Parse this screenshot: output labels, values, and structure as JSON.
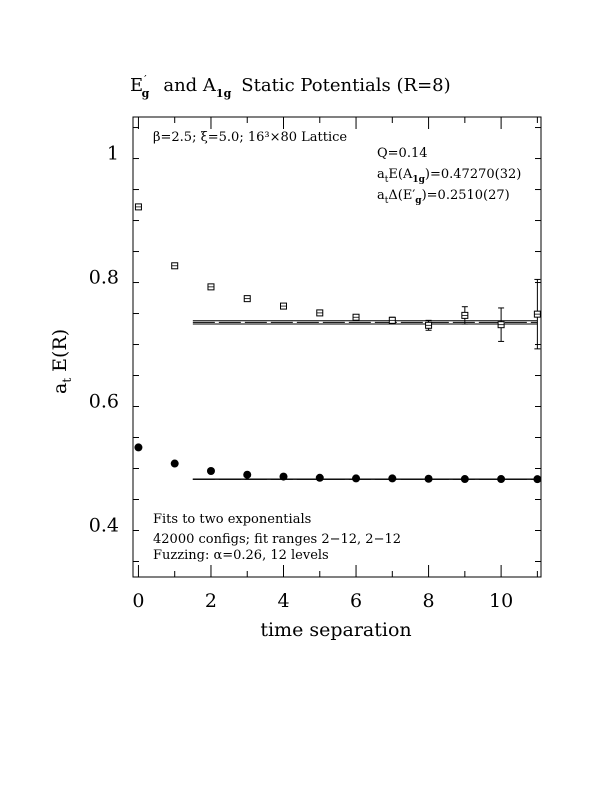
{
  "chart_data": {
    "type": "scatter",
    "title_parts": {
      "e": "E",
      "eprime": "′",
      "esub": "g",
      "mid": "and A",
      "asub": "1g",
      "rest": "Static Potentials (R=8)"
    },
    "xlabel": "time separation",
    "ylabel_main": "a",
    "ylabel_sub": "t",
    "ylabel_rest": "E(R)",
    "xlim": [
      -0.15,
      11.1
    ],
    "ylim": [
      0.315,
      1.057
    ],
    "x_ticks": [
      0,
      2,
      4,
      6,
      8,
      10
    ],
    "y_ticks": [
      0.4,
      0.6,
      0.8,
      1.0
    ],
    "x_tick_labels": [
      "0",
      "2",
      "4",
      "6",
      "8",
      "10"
    ],
    "y_tick_labels": [
      "0.4",
      "0.6",
      "0.8",
      "1"
    ],
    "annotations": {
      "lattice": "β=2.5; ξ=5.0; 16³×80 Lattice",
      "q": "Q=0.14",
      "ea1g_pre": "a",
      "ea1g_sub1": "t",
      "ea1g_mid": "E(A",
      "ea1g_sub2": "1g",
      "ea1g_post": ")=0.47270(32)",
      "deg_pre": "a",
      "deg_sub1": "t",
      "deg_mid": "Δ(E′",
      "deg_sub2": "g",
      "deg_post": ")=0.2510(27)",
      "fits": "Fits to two exponentials",
      "configs": "42000 configs; fit ranges 2−12, 2−12",
      "fuzzing": "Fuzzing: α=0.26, 12 levels"
    },
    "series": [
      {
        "marker": "open-square",
        "x": [
          0,
          1,
          2,
          3,
          4,
          5,
          6,
          7,
          8,
          9,
          10,
          11
        ],
        "y": [
          0.912,
          0.817,
          0.783,
          0.764,
          0.752,
          0.741,
          0.734,
          0.729,
          0.721,
          0.737,
          0.722,
          0.739
        ],
        "err": [
          0.001,
          0.001,
          0.002,
          0.002,
          0.002,
          0.003,
          0.004,
          0.005,
          0.008,
          0.014,
          0.027,
          0.056
        ]
      },
      {
        "marker": "filled-circle",
        "x": [
          0,
          1,
          2,
          3,
          4,
          5,
          6,
          7,
          8,
          9,
          10,
          11
        ],
        "y": [
          0.524,
          0.498,
          0.486,
          0.48,
          0.477,
          0.475,
          0.474,
          0.474,
          0.4735,
          0.473,
          0.473,
          0.4728
        ],
        "err": [
          0.001,
          0.001,
          0.001,
          0.001,
          0.001,
          0.001,
          0.001,
          0.001,
          0.001,
          0.001,
          0.001,
          0.001
        ]
      }
    ],
    "fit_lines": [
      {
        "x_range": [
          1.5,
          11
        ],
        "y": 0.7257,
        "band": 0.0027
      },
      {
        "x_range": [
          1.5,
          11
        ],
        "y": 0.4727,
        "band": 0.0003
      }
    ]
  }
}
